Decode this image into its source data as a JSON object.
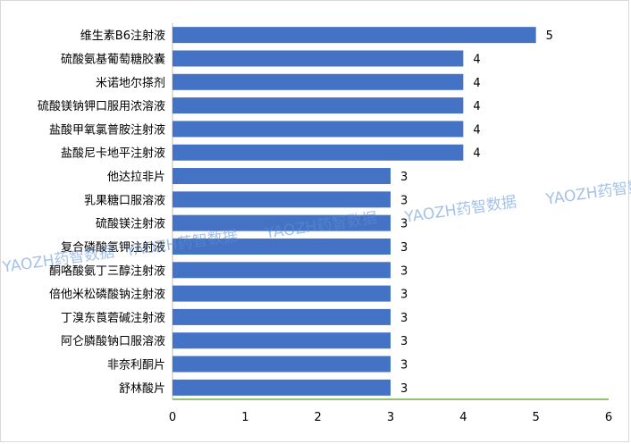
{
  "chart_data": {
    "type": "bar",
    "orientation": "horizontal",
    "categories": [
      "维生素B6注射液",
      "硫酸氨基葡萄糖胶囊",
      "米诺地尔搽剂",
      "硫酸镁钠钾口服用浓溶液",
      "盐酸甲氧氯普胺注射液",
      "盐酸尼卡地平注射液",
      "他达拉非片",
      "乳果糖口服溶液",
      "硫酸镁注射液",
      "复合磷酸氢钾注射液",
      "酮咯酸氨丁三醇注射液",
      "倍他米松磷酸钠注射液",
      "丁溴东莨菪碱注射液",
      "阿仑膦酸钠口服溶液",
      "非奈利酮片",
      "舒林酸片"
    ],
    "values": [
      5,
      4,
      4,
      4,
      4,
      4,
      3,
      3,
      3,
      3,
      3,
      3,
      3,
      3,
      3,
      3
    ],
    "xlim": [
      0,
      6
    ],
    "xticks": [
      "0",
      "1",
      "2",
      "3",
      "4",
      "5",
      "6"
    ],
    "data_labels": true,
    "grid": false,
    "title": "",
    "xlabel": "",
    "ylabel": "",
    "colors": {
      "bar": "#4472C4",
      "axis_x": "#70AD47",
      "axis_y": "#BFBFBF",
      "text": "#000000"
    }
  },
  "watermark": {
    "text": "YAOZH药智数据"
  }
}
